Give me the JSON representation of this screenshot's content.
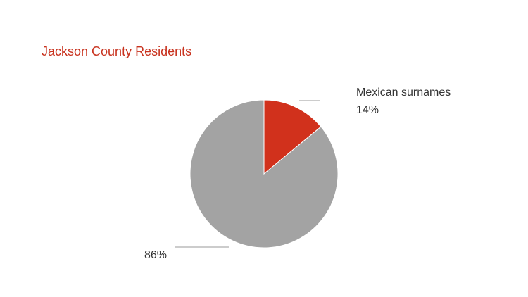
{
  "page": {
    "title": "Jackson County Residents"
  },
  "chart_data": {
    "type": "pie",
    "title": "Jackson County Residents",
    "slices": [
      {
        "name": "Mexican surnames",
        "value": 14,
        "label": "14%",
        "color": "#d1311c"
      },
      {
        "name": "",
        "value": 86,
        "label": "86%",
        "color": "#a3a3a3"
      }
    ],
    "start_angle_deg": 0,
    "direction": "clockwise",
    "title_color": "#c8321e",
    "label_color": "#333333",
    "leader_color": "#9a9a9a"
  }
}
